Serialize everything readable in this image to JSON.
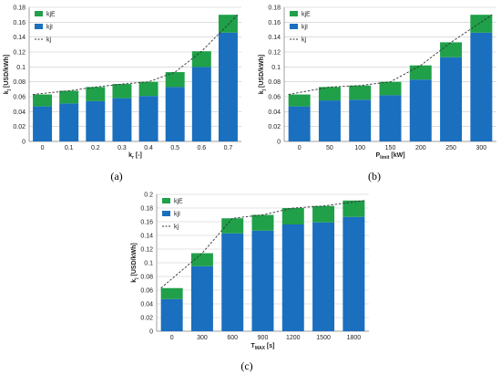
{
  "colors": {
    "kjI": "#1a6fbf",
    "kjE": "#1fa049",
    "kj": "#333333"
  },
  "chart_data": [
    {
      "type": "bar",
      "panel": "(a)",
      "categories": [
        "0",
        "0.1",
        "0.2",
        "0.3",
        "0.4",
        "0.5",
        "0.6",
        "0.7"
      ],
      "series": [
        {
          "name": "kjI",
          "values": [
            0.047,
            0.051,
            0.054,
            0.058,
            0.061,
            0.073,
            0.1,
            0.146
          ]
        },
        {
          "name": "kjE",
          "values": [
            0.016,
            0.017,
            0.019,
            0.019,
            0.019,
            0.02,
            0.021,
            0.024
          ]
        }
      ],
      "line": {
        "name": "kj",
        "values": [
          0.063,
          0.068,
          0.073,
          0.077,
          0.08,
          0.093,
          0.121,
          0.17
        ]
      },
      "xlabel": "k_r [-]",
      "ylabel": "k_j [USD/kWh]",
      "ylim": [
        0,
        0.18
      ],
      "yticks": [
        "0",
        "0.02",
        "0.04",
        "0.06",
        "0.08",
        "0.1",
        "0.12",
        "0.14",
        "0.16",
        "0.18"
      ],
      "legend": [
        "kjE",
        "kjI",
        "kj"
      ],
      "legend_position": "top-left",
      "grid": true
    },
    {
      "type": "bar",
      "panel": "(b)",
      "categories": [
        "0",
        "50",
        "100",
        "150",
        "200",
        "250",
        "300"
      ],
      "series": [
        {
          "name": "kjI",
          "values": [
            0.047,
            0.055,
            0.056,
            0.062,
            0.083,
            0.113,
            0.146
          ]
        },
        {
          "name": "kjE",
          "values": [
            0.016,
            0.018,
            0.019,
            0.018,
            0.019,
            0.02,
            0.024
          ]
        }
      ],
      "line": {
        "name": "kj",
        "values": [
          0.063,
          0.073,
          0.075,
          0.08,
          0.102,
          0.133,
          0.17
        ]
      },
      "xlabel": "P_limit [kW]",
      "ylabel": "k_j [USD/kWh]",
      "ylim": [
        0,
        0.18
      ],
      "yticks": [
        "0",
        "0.02",
        "0.04",
        "0.06",
        "0.08",
        "0.1",
        "0.12",
        "0.14",
        "0.16",
        "0.18"
      ],
      "legend": [
        "kjE",
        "kjI",
        "kj"
      ],
      "legend_position": "top-left",
      "grid": true
    },
    {
      "type": "bar",
      "panel": "(c)",
      "categories": [
        "0",
        "300",
        "600",
        "900",
        "1200",
        "1500",
        "1800"
      ],
      "series": [
        {
          "name": "kjI",
          "values": [
            0.047,
            0.095,
            0.143,
            0.147,
            0.156,
            0.159,
            0.167
          ]
        },
        {
          "name": "kjE",
          "values": [
            0.016,
            0.019,
            0.022,
            0.023,
            0.024,
            0.024,
            0.024
          ]
        }
      ],
      "line": {
        "name": "kj",
        "values": [
          0.063,
          0.114,
          0.165,
          0.17,
          0.18,
          0.183,
          0.191
        ]
      },
      "xlabel": "T_MAX [s]",
      "ylabel": "k_j [USD/kWh]",
      "ylim": [
        0,
        0.2
      ],
      "yticks": [
        "0",
        "0.02",
        "0.04",
        "0.06",
        "0.08",
        "0.1",
        "0.12",
        "0.14",
        "0.16",
        "0.18",
        "0.2"
      ],
      "legend": [
        "kjE",
        "kjI",
        "kj"
      ],
      "legend_position": "top-left",
      "grid": true
    }
  ]
}
